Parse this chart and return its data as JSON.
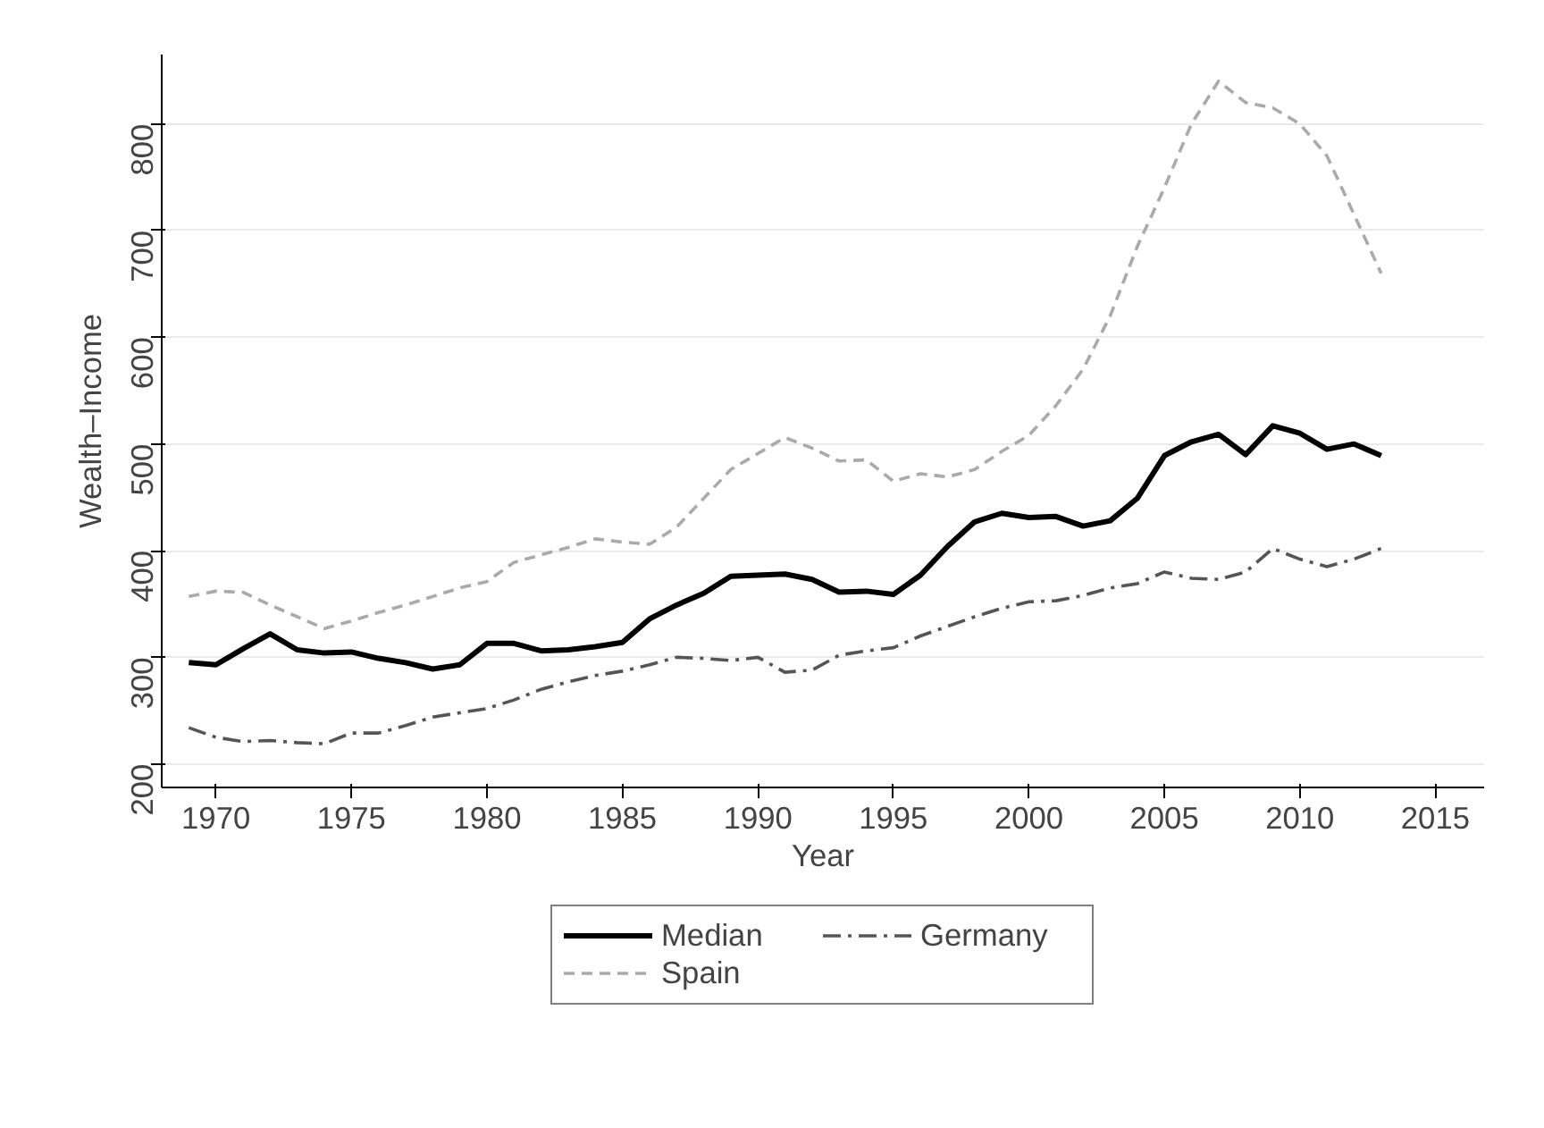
{
  "chart_data": {
    "type": "line",
    "xlabel": "Year",
    "ylabel": "Wealth–Income",
    "x": [
      1969,
      1970,
      1971,
      1972,
      1973,
      1974,
      1975,
      1976,
      1977,
      1978,
      1979,
      1980,
      1981,
      1982,
      1983,
      1984,
      1985,
      1986,
      1987,
      1988,
      1989,
      1990,
      1991,
      1992,
      1993,
      1994,
      1995,
      1996,
      1997,
      1998,
      1999,
      2000,
      2001,
      2002,
      2003,
      2004,
      2005,
      2006,
      2007,
      2008,
      2009,
      2010,
      2011,
      2012,
      2013
    ],
    "series": [
      {
        "name": "Median",
        "color": "#000000",
        "line_style": "solid",
        "values": [
          295,
          293,
          308,
          322,
          307,
          304,
          305,
          299,
          295,
          289,
          293,
          313,
          313,
          306,
          307,
          310,
          314,
          336,
          349,
          360,
          376,
          377,
          378,
          373,
          361,
          362,
          359,
          377,
          404,
          427,
          435,
          431,
          432,
          423,
          428,
          449,
          489,
          502,
          509,
          490,
          517,
          510,
          495,
          500,
          489
        ]
      },
      {
        "name": "Germany",
        "color": "#555555",
        "line_style": "dashdot",
        "values": [
          234,
          225,
          221,
          222,
          220,
          219,
          229,
          229,
          236,
          244,
          248,
          252,
          260,
          270,
          277,
          283,
          287,
          293,
          300,
          299,
          297,
          300,
          286,
          288,
          302,
          306,
          309,
          320,
          329,
          338,
          346,
          352,
          353,
          358,
          365,
          369,
          380,
          374,
          373,
          380,
          402,
          392,
          385,
          392,
          402
        ]
      },
      {
        "name": "Spain",
        "color": "#aaaaaa",
        "line_style": "dashed",
        "values": [
          357,
          362,
          361,
          349,
          338,
          327,
          334,
          342,
          349,
          357,
          365,
          371,
          389,
          396,
          403,
          411,
          408,
          406,
          422,
          449,
          476,
          491,
          506,
          496,
          484,
          485,
          465,
          472,
          469,
          476,
          493,
          508,
          536,
          570,
          620,
          685,
          740,
          800,
          840,
          820,
          815,
          800,
          770,
          715,
          660
        ]
      }
    ],
    "xlim": [
      1968,
      2016.8
    ],
    "ylim": [
      178,
      865
    ],
    "xticks": [
      1970,
      1975,
      1980,
      1985,
      1990,
      1995,
      2000,
      2005,
      2010,
      2015
    ],
    "yticks": [
      200,
      300,
      400,
      500,
      600,
      700,
      800
    ],
    "grid": "y",
    "legend": "bottom"
  }
}
